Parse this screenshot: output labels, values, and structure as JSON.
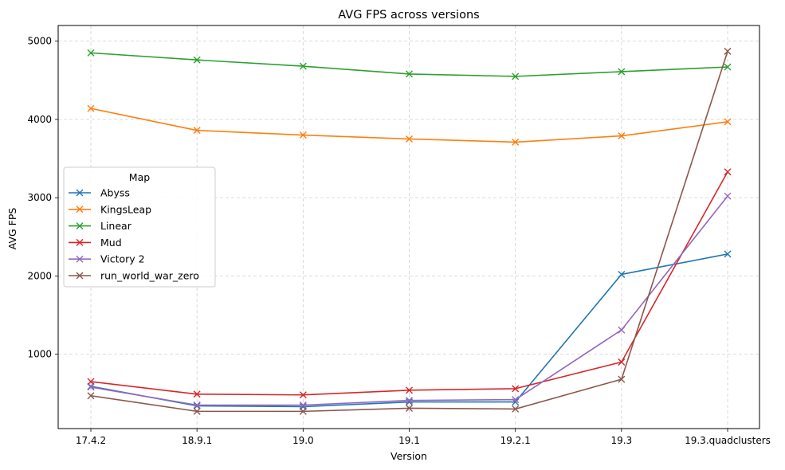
{
  "chart_data": {
    "type": "line",
    "title": "AVG FPS across versions",
    "xlabel": "Version",
    "ylabel": "AVG FPS",
    "categories": [
      "17.4.2",
      "18.9.1",
      "19.0",
      "19.1",
      "19.2.1",
      "19.3",
      "19.3.quadclusters"
    ],
    "y_ticks": [
      1000,
      2000,
      3000,
      4000,
      5000
    ],
    "ylim": [
      50,
      5200
    ],
    "grid": true,
    "grid_style": "dashed",
    "marker": "x",
    "legend": {
      "title": "Map",
      "placement": "center-left"
    },
    "series": [
      {
        "name": "Abyss",
        "color": "#1f77b4",
        "values": [
          590,
          340,
          330,
          390,
          390,
          2020,
          2280
        ]
      },
      {
        "name": "KingsLeap",
        "color": "#ff7f0e",
        "values": [
          4140,
          3860,
          3800,
          3750,
          3710,
          3790,
          3970
        ]
      },
      {
        "name": "Linear",
        "color": "#2ca02c",
        "values": [
          4850,
          4760,
          4680,
          4580,
          4550,
          4610,
          4670
        ]
      },
      {
        "name": "Mud",
        "color": "#d62728",
        "values": [
          650,
          490,
          480,
          540,
          560,
          900,
          3330
        ]
      },
      {
        "name": "Victory 2",
        "color": "#9467bd",
        "values": [
          580,
          350,
          350,
          410,
          420,
          1310,
          3020
        ]
      },
      {
        "name": "run_world_war_zero",
        "color": "#8c564b",
        "values": [
          470,
          270,
          270,
          310,
          300,
          680,
          4870
        ]
      }
    ]
  }
}
